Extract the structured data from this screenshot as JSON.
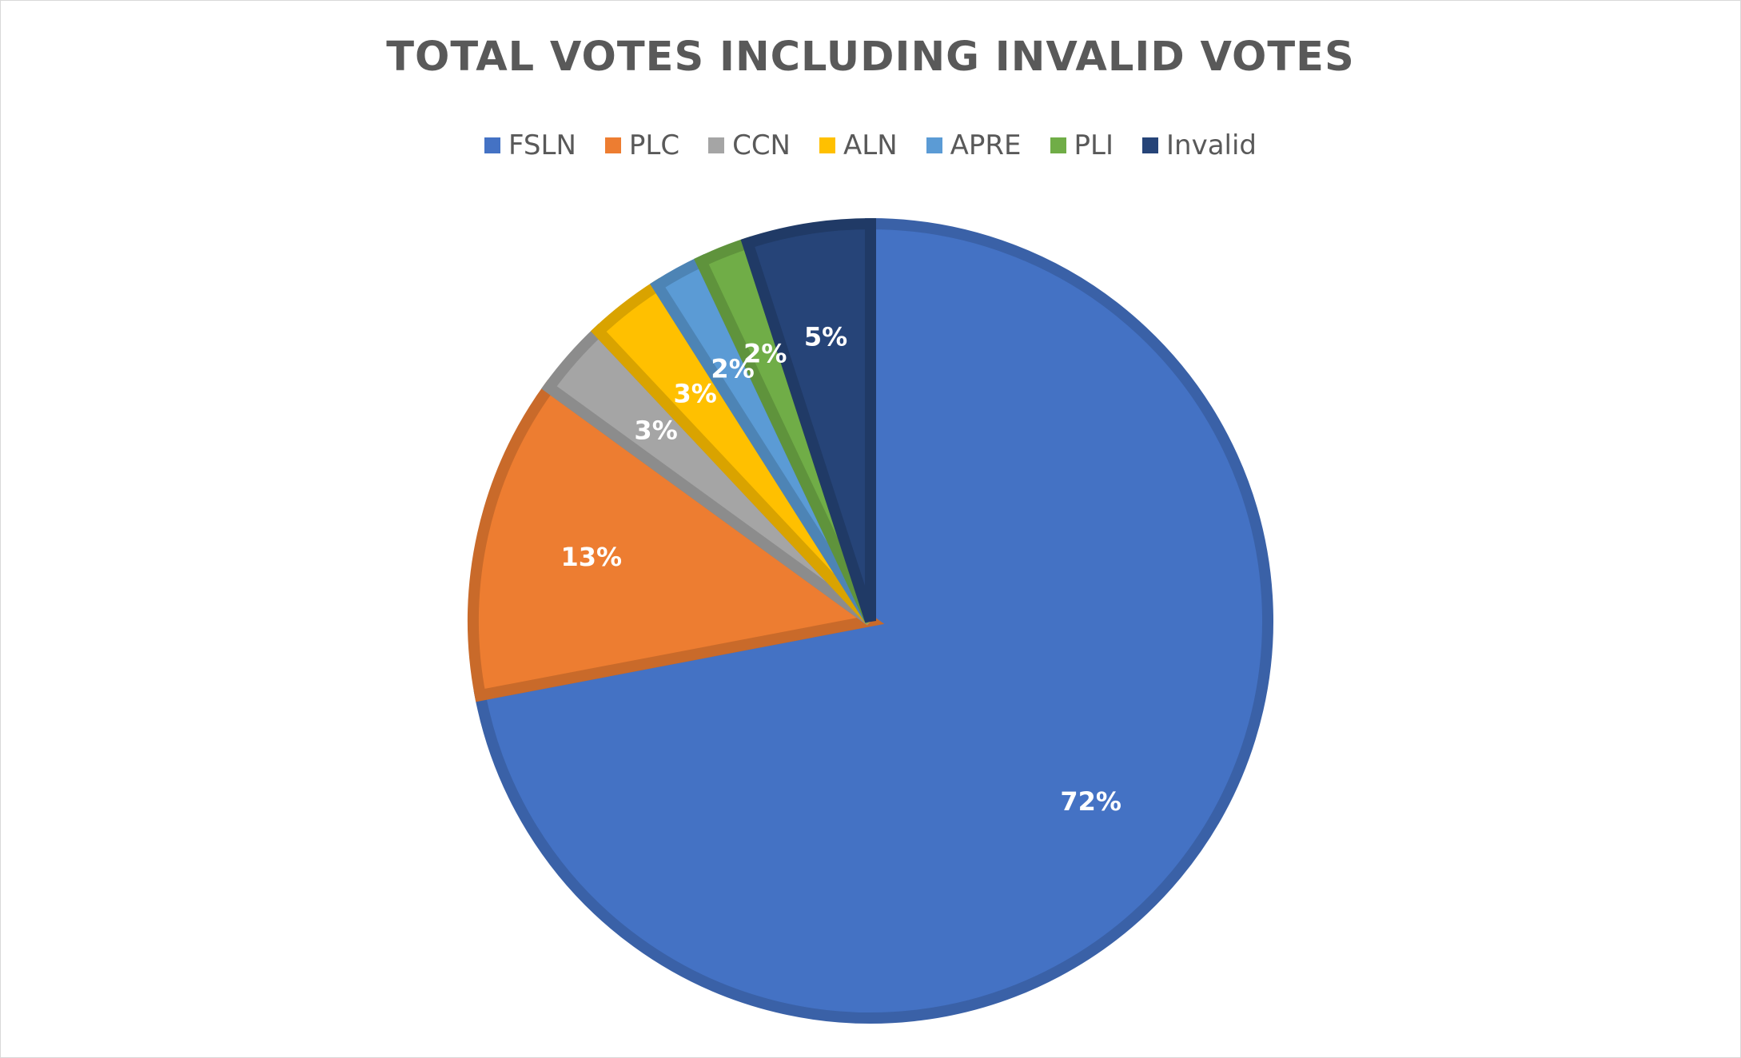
{
  "chart_data": {
    "type": "pie",
    "title": "TOTAL VOTES INCLUDING INVALID VOTES",
    "legend_position": "top",
    "categories": [
      "FSLN",
      "PLC",
      "CCN",
      "ALN",
      "APRE",
      "PLI",
      "Invalid"
    ],
    "values": [
      72,
      13,
      3,
      3,
      2,
      2,
      5
    ],
    "labels": [
      "72%",
      "13%",
      "3%",
      "3%",
      "2%",
      "2%",
      "5%"
    ],
    "colors": [
      "#4472C4",
      "#ED7D31",
      "#A5A5A5",
      "#FFC000",
      "#5B9BD5",
      "#70AD47",
      "#264478"
    ],
    "start_angle": "12 o'clock",
    "direction": "clockwise"
  }
}
